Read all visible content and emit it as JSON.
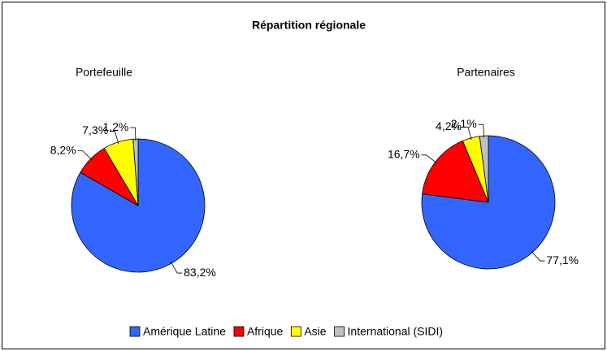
{
  "title": "Répartition régionale",
  "chart_data": [
    {
      "type": "pie",
      "title": "Portefeuille",
      "categories": [
        "Amérique Latine",
        "Afrique",
        "Asie",
        "International (SIDI)"
      ],
      "values": [
        83.2,
        8.2,
        7.3,
        1.2
      ],
      "value_labels": [
        "83,2%",
        "8,2%",
        "7,3%",
        "1,2%"
      ],
      "colors": [
        "#3366ff",
        "#ff0000",
        "#ffff00",
        "#c0c0c0"
      ]
    },
    {
      "type": "pie",
      "title": "Partenaires",
      "categories": [
        "Amérique Latine",
        "Afrique",
        "Asie",
        "International (SIDI)"
      ],
      "values": [
        77.1,
        16.7,
        4.2,
        2.1
      ],
      "value_labels": [
        "77,1%",
        "16,7%",
        "4,2%",
        "2,1%"
      ],
      "colors": [
        "#3366ff",
        "#ff0000",
        "#ffff00",
        "#c0c0c0"
      ]
    }
  ]
}
